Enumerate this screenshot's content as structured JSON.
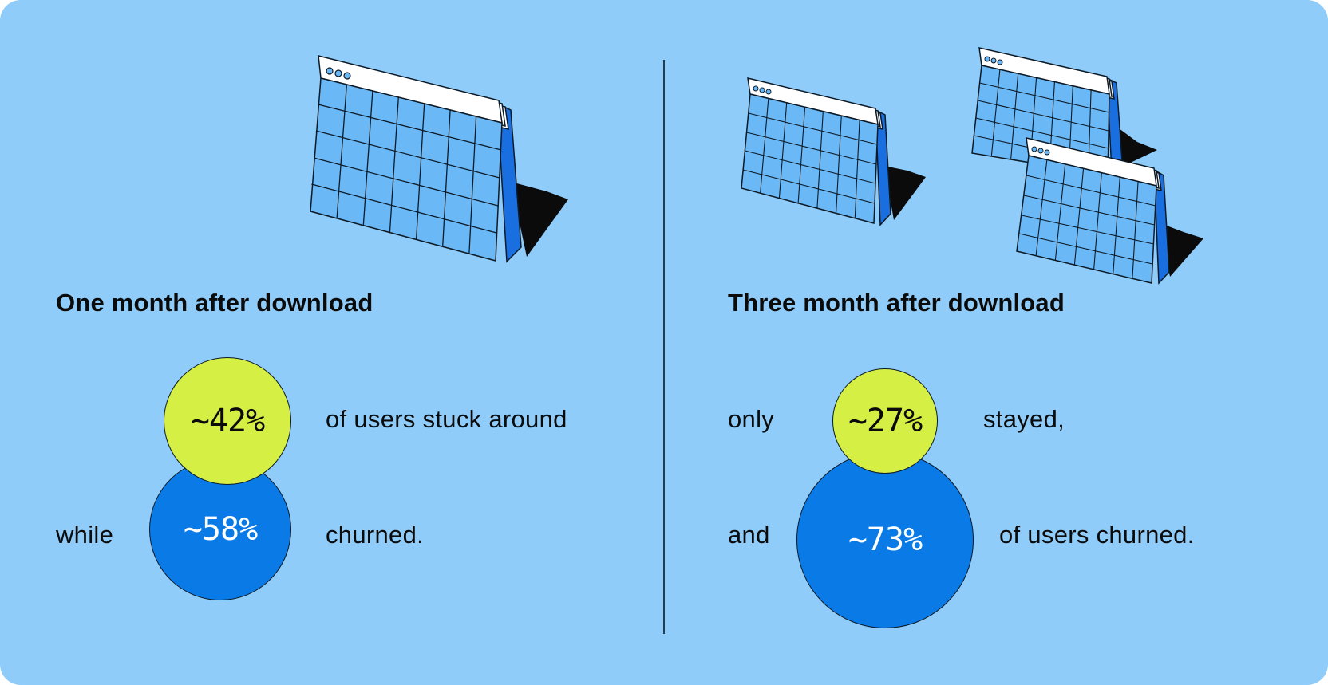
{
  "colors": {
    "background": "#8fccf9",
    "retained": "#d6ef44",
    "churned": "#0a7ae6",
    "calendar_face": "#6ab8f6",
    "calendar_side": "#1a6fe0"
  },
  "icons": [
    "calendar-icon"
  ],
  "left_panel": {
    "heading": "One month after download",
    "retained_value": "~42%",
    "retained_text": "of users stuck around",
    "churn_prefix": "while",
    "churned_value": "~58%",
    "churned_text": "churned."
  },
  "right_panel": {
    "heading": "Three month after download",
    "retained_prefix": "only",
    "retained_value": "~27%",
    "retained_text": "stayed,",
    "churn_prefix": "and",
    "churned_value": "~73%",
    "churned_text": "of users churned."
  }
}
